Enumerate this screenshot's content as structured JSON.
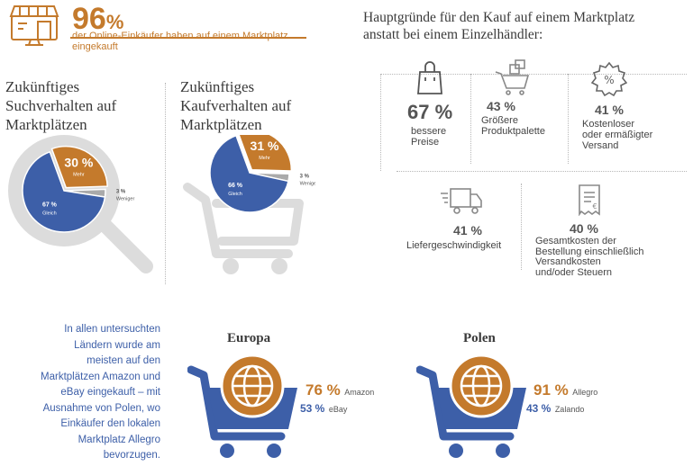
{
  "hero": {
    "value": "96",
    "unit": "%",
    "text": "der Online-Einkäufer haben auf einem Marktplatz eingekauft",
    "icon": "storefront-icon"
  },
  "search": {
    "title_lines": [
      "Zukünftiges",
      "Suchverhalten auf",
      "Marktplätzen"
    ],
    "icon": "magnifier-icon"
  },
  "purchase": {
    "title_lines": [
      "Zukünftiges",
      "Kaufverhalten auf",
      "Marktplätzen"
    ],
    "icon": "shopping-cart-icon"
  },
  "reasons": {
    "title_lines": [
      "Hauptgründe für den Kauf auf einem Marktplatz",
      "anstatt bei einem Einzelhändler:"
    ],
    "items": [
      {
        "pct": "67 %",
        "lines": [
          "bessere",
          "Preise"
        ],
        "icon": "shopping-bag-icon"
      },
      {
        "pct": "43 %",
        "lines": [
          "Größere",
          "Produktpalette"
        ],
        "icon": "product-cart-icon"
      },
      {
        "pct": "41 %",
        "lines": [
          "Kostenloser",
          "oder ermäßigter",
          "Versand"
        ],
        "icon": "discount-badge-icon"
      },
      {
        "pct": "41 %",
        "lines": [
          "Liefergeschwindigkeit"
        ],
        "icon": "delivery-truck-icon"
      },
      {
        "pct": "40 %",
        "lines": [
          "Gesamtkosten der",
          "Bestellung einschließlich",
          "Versandkosten",
          "und/oder Steuern"
        ],
        "icon": "receipt-icon"
      }
    ]
  },
  "note": {
    "text": "In allen untersuchten Ländern wurde am meisten auf den Marktplätzen Amazon und eBay eingekauft – mit Ausnahme von Polen, wo Einkäufer den lokalen Marktplatz Allegro bevorzugen."
  },
  "regions": [
    {
      "name": "Europa",
      "first": {
        "pct": "76 %",
        "name": "Amazon"
      },
      "second": {
        "pct": "53 %",
        "name": "eBay"
      },
      "icon": "globe-cart-icon"
    },
    {
      "name": "Polen",
      "first": {
        "pct": "91 %",
        "name": "Allegro"
      },
      "second": {
        "pct": "43 %",
        "name": "Zalando"
      },
      "icon": "globe-cart-icon"
    }
  ],
  "colors": {
    "orange": "#c47a2c",
    "blue": "#3d5fa8",
    "grey": "#aaaaaa",
    "light_grey": "#dcdcdc"
  },
  "chart_data": [
    {
      "type": "pie",
      "slices": [
        {
          "label": "Mehr",
          "value": 30,
          "value_label": "30 %",
          "color": "#c47a2c"
        },
        {
          "label": "Weniger",
          "value": 3,
          "value_label": "3 %",
          "color": "#aaaaaa"
        },
        {
          "label": "Gleich",
          "value": 67,
          "value_label": "67 %",
          "color": "#3d5fa8"
        }
      ]
    },
    {
      "type": "pie",
      "slices": [
        {
          "label": "Mehr",
          "value": 31,
          "value_label": "31 %",
          "color": "#c47a2c"
        },
        {
          "label": "Weniger",
          "value": 3,
          "value_label": "3 %",
          "color": "#aaaaaa"
        },
        {
          "label": "Gleich",
          "value": 66,
          "value_label": "66 %",
          "color": "#3d5fa8"
        }
      ]
    }
  ]
}
